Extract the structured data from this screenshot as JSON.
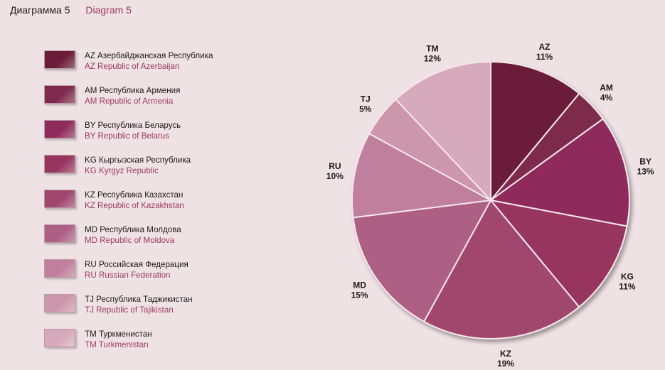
{
  "header": {
    "ru": "Диаграмма 5",
    "en": "Diagram 5"
  },
  "legend": [
    {
      "code": "AZ",
      "ru": "AZ Азербайджанская Республика",
      "en": "AZ Republic of Azerbaijan",
      "color": "#6a1b38"
    },
    {
      "code": "AM",
      "ru": "AM Республика Армения",
      "en": "AM Republic of Armenia",
      "color": "#7e2a4c"
    },
    {
      "code": "BY",
      "ru": "BY Республика Беларусь",
      "en": "BY Republic of Belarus",
      "color": "#8f2c5b"
    },
    {
      "code": "KG",
      "ru": "KG Кыргызская  Республика",
      "en": "KG Kyrgyz Republic",
      "color": "#98355f"
    },
    {
      "code": "KZ",
      "ru": "KZ Республика Казахстан",
      "en": "KZ Republic of Kazakhstan",
      "color": "#a1466d"
    },
    {
      "code": "MD",
      "ru": "MD Республика Молдова",
      "en": "MD Republic of Moldova",
      "color": "#ad5f84"
    },
    {
      "code": "RU",
      "ru": "RU Российская Федерация",
      "en": "RU Russian Federation",
      "color": "#c07f9c"
    },
    {
      "code": "TJ",
      "ru": "TJ Республика Таджикистан",
      "en": "TJ Republic of Tajikistan",
      "color": "#cc96ad"
    },
    {
      "code": "TM",
      "ru": "TM Туркменистан",
      "en": "TM Turkmenistan",
      "color": "#d7a9bc"
    }
  ],
  "chart_data": {
    "type": "pie",
    "start_angle_deg": 0,
    "direction": "clockwise",
    "slices": [
      {
        "label": "AZ",
        "value": 11,
        "value_label": "11%",
        "color": "#6a1b38"
      },
      {
        "label": "AM",
        "value": 4,
        "value_label": "4%",
        "color": "#7e2a4c"
      },
      {
        "label": "BY",
        "value": 13,
        "value_label": "13%",
        "color": "#8f2c5b"
      },
      {
        "label": "KG",
        "value": 11,
        "value_label": "11%",
        "color": "#98355f"
      },
      {
        "label": "KZ",
        "value": 19,
        "value_label": "19%",
        "color": "#a1466d"
      },
      {
        "label": "MD",
        "value": 15,
        "value_label": "15%",
        "color": "#ad5f84"
      },
      {
        "label": "RU",
        "value": 10,
        "value_label": "10%",
        "color": "#c07f9c"
      },
      {
        "label": "TJ",
        "value": 5,
        "value_label": "5%",
        "color": "#cc96ad"
      },
      {
        "label": "TM",
        "value": 12,
        "value_label": "12%",
        "color": "#d7a9bc"
      }
    ]
  }
}
